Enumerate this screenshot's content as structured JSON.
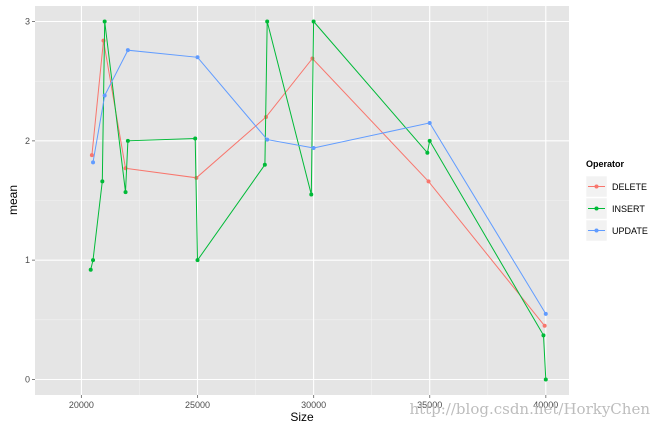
{
  "chart_data": {
    "type": "line",
    "xlabel": "Size",
    "ylabel": "mean",
    "xlim": [
      18000,
      41000
    ],
    "ylim": [
      -0.13,
      3.13
    ],
    "x_ticks": [
      20000,
      25000,
      30000,
      35000,
      40000
    ],
    "y_ticks": [
      0,
      1,
      2,
      3
    ],
    "x_tick_labels": [
      "20000",
      "25000",
      "30000",
      "35000",
      "40000"
    ],
    "y_tick_labels": [
      "0",
      "1",
      "2",
      "3"
    ],
    "grid": true,
    "background": "#e5e5e5",
    "legend": {
      "title": "Operator",
      "placement": "right"
    },
    "series": [
      {
        "name": "DELETE",
        "color": "#f8766d",
        "points": [
          [
            20450,
            1.88
          ],
          [
            20950,
            2.84
          ],
          [
            21900,
            1.77
          ],
          [
            24950,
            1.69
          ],
          [
            27950,
            2.2
          ],
          [
            29950,
            2.69
          ],
          [
            34950,
            1.66
          ],
          [
            39950,
            0.45
          ]
        ]
      },
      {
        "name": "INSERT",
        "color": "#00ba38",
        "points": [
          [
            20400,
            0.92
          ],
          [
            20500,
            1.0
          ],
          [
            20900,
            1.66
          ],
          [
            21000,
            3.0
          ],
          [
            21900,
            1.57
          ],
          [
            22000,
            2.0
          ],
          [
            24900,
            2.02
          ],
          [
            25000,
            1.0
          ],
          [
            27900,
            1.8
          ],
          [
            28000,
            3.0
          ],
          [
            29900,
            1.55
          ],
          [
            30000,
            3.0
          ],
          [
            34900,
            1.9
          ],
          [
            35000,
            2.0
          ],
          [
            39900,
            0.37
          ],
          [
            40000,
            0.0
          ]
        ]
      },
      {
        "name": "UPDATE",
        "color": "#619cff",
        "points": [
          [
            20500,
            1.82
          ],
          [
            21000,
            2.38
          ],
          [
            22000,
            2.76
          ],
          [
            25000,
            2.7
          ],
          [
            28000,
            2.01
          ],
          [
            30000,
            1.94
          ],
          [
            35000,
            2.15
          ],
          [
            40000,
            0.55
          ]
        ]
      }
    ]
  },
  "watermark": "http://blog.csdn.net/HorkyChen"
}
